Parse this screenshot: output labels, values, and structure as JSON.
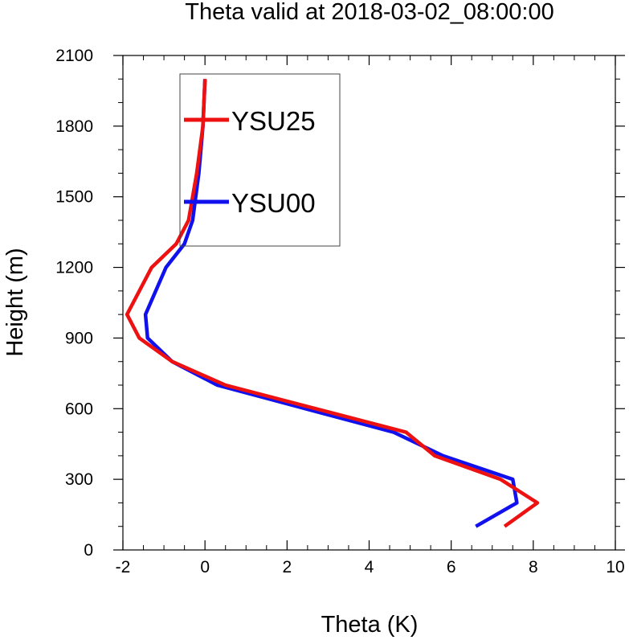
{
  "chart_data": {
    "type": "line",
    "title": "Theta valid at 2018-03-02_08:00:00",
    "xlabel": "Theta (K)",
    "ylabel": "Height (m)",
    "xlim": [
      -2,
      10
    ],
    "ylim": [
      0,
      2100
    ],
    "xticks": [
      -2,
      0,
      2,
      4,
      6,
      8,
      10
    ],
    "yticks": [
      0,
      300,
      600,
      900,
      1200,
      1500,
      1800,
      2100
    ],
    "grid": false,
    "legend": "top-left",
    "series": [
      {
        "name": "YSU25",
        "color": "#ee1111",
        "points": [
          [
            7.3,
            100
          ],
          [
            8.1,
            200
          ],
          [
            7.2,
            300
          ],
          [
            5.6,
            400
          ],
          [
            4.9,
            500
          ],
          [
            0.5,
            700
          ],
          [
            -0.8,
            800
          ],
          [
            -1.6,
            900
          ],
          [
            -1.9,
            1000
          ],
          [
            -1.3,
            1200
          ],
          [
            -0.7,
            1300
          ],
          [
            -0.4,
            1400
          ],
          [
            -0.2,
            1600
          ],
          [
            -0.05,
            1800
          ],
          [
            0.0,
            2000
          ]
        ]
      },
      {
        "name": "YSU00",
        "color": "#1111ee",
        "points": [
          [
            6.6,
            100
          ],
          [
            7.6,
            200
          ],
          [
            7.5,
            300
          ],
          [
            5.8,
            400
          ],
          [
            4.6,
            500
          ],
          [
            0.3,
            700
          ],
          [
            -0.8,
            800
          ],
          [
            -1.4,
            900
          ],
          [
            -1.45,
            1000
          ],
          [
            -0.95,
            1200
          ],
          [
            -0.5,
            1300
          ],
          [
            -0.3,
            1400
          ],
          [
            -0.15,
            1600
          ],
          [
            -0.05,
            1800
          ],
          [
            0.0,
            2000
          ]
        ]
      }
    ]
  }
}
